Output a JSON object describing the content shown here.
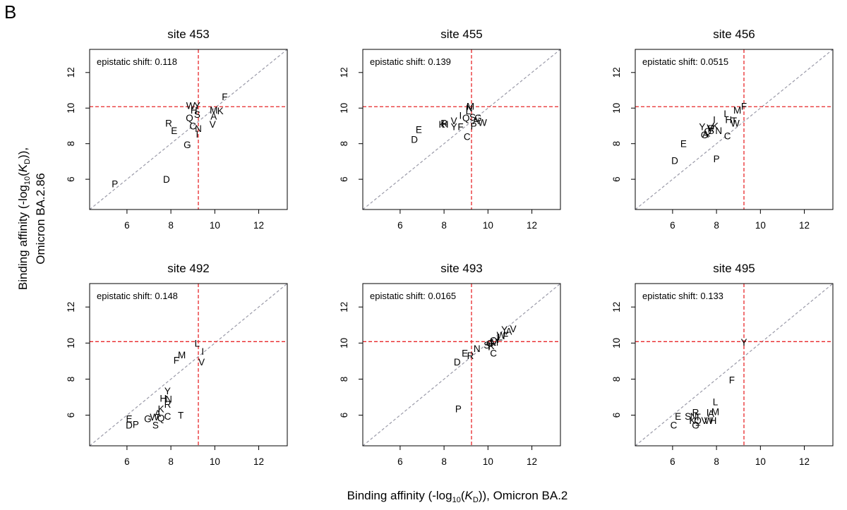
{
  "panel_letter": "B",
  "y_axis_title": {
    "line1_pre": "Binding affinity (-log",
    "line1_sub1": "10",
    "line1_mid": "(",
    "line1_italic": "K",
    "line1_sub2": "D",
    "line1_post": ")),",
    "line2": "Omicron BA.2.86"
  },
  "x_axis_title": {
    "pre": "Binding affinity (-log",
    "sub1": "10",
    "mid": "(",
    "italic": "K",
    "sub2": "D",
    "post": ")), Omicron BA.2"
  },
  "colors": {
    "reference_line": "#e8272a",
    "diagonal": "#9a9aa8",
    "frame": "#000000"
  },
  "chart_data": [
    {
      "type": "scatter",
      "title": "site 453",
      "annotation_label": "epistatic shift:",
      "annotation_value": "0.118",
      "xlim": [
        4.3,
        13.3
      ],
      "ylim": [
        4.3,
        13.3
      ],
      "xticks": [
        "6",
        "8",
        "10",
        "12"
      ],
      "yticks": [
        "6",
        "8",
        "10",
        "12"
      ],
      "ref_x": 9.25,
      "ref_y": 10.08,
      "points": [
        {
          "label": "W",
          "x": 8.9,
          "y": 10.15
        },
        {
          "label": "Y",
          "x": 9.2,
          "y": 10.15
        },
        {
          "label": "F",
          "x": 10.45,
          "y": 10.65
        },
        {
          "label": "H",
          "x": 9.05,
          "y": 9.9
        },
        {
          "label": "S",
          "x": 9.2,
          "y": 9.65
        },
        {
          "label": "M",
          "x": 9.95,
          "y": 9.9
        },
        {
          "label": "K",
          "x": 10.25,
          "y": 9.85
        },
        {
          "label": "A",
          "x": 9.95,
          "y": 9.55
        },
        {
          "label": "V",
          "x": 9.9,
          "y": 9.1
        },
        {
          "label": "Q",
          "x": 8.85,
          "y": 9.45
        },
        {
          "label": "R",
          "x": 7.9,
          "y": 9.15
        },
        {
          "label": "E",
          "x": 8.15,
          "y": 8.75
        },
        {
          "label": "C",
          "x": 9.0,
          "y": 9.0
        },
        {
          "label": "N",
          "x": 9.25,
          "y": 8.85
        },
        {
          "label": "I",
          "x": 9.2,
          "y": 8.55
        },
        {
          "label": "G",
          "x": 8.75,
          "y": 7.95
        },
        {
          "label": "D",
          "x": 7.8,
          "y": 6.0
        },
        {
          "label": "P",
          "x": 5.45,
          "y": 5.75
        }
      ]
    },
    {
      "type": "scatter",
      "title": "site 455",
      "annotation_label": "epistatic shift:",
      "annotation_value": "0.139",
      "xlim": [
        4.3,
        13.3
      ],
      "ylim": [
        4.3,
        13.3
      ],
      "xticks": [
        "6",
        "8",
        "10",
        "12"
      ],
      "yticks": [
        "6",
        "8",
        "10",
        "12"
      ],
      "ref_x": 9.25,
      "ref_y": 10.08,
      "points": [
        {
          "label": "N",
          "x": 9.15,
          "y": 10.0
        },
        {
          "label": "M",
          "x": 9.2,
          "y": 10.1
        },
        {
          "label": "L",
          "x": 9.1,
          "y": 9.85
        },
        {
          "label": "I",
          "x": 8.75,
          "y": 9.6
        },
        {
          "label": "V",
          "x": 8.45,
          "y": 9.3
        },
        {
          "label": "K",
          "x": 7.9,
          "y": 9.1
        },
        {
          "label": "H",
          "x": 8.05,
          "y": 9.1
        },
        {
          "label": "R",
          "x": 8.0,
          "y": 9.15
        },
        {
          "label": "Y",
          "x": 8.45,
          "y": 8.95
        },
        {
          "label": "F",
          "x": 8.75,
          "y": 8.95
        },
        {
          "label": "Q",
          "x": 9.0,
          "y": 9.45
        },
        {
          "label": "S",
          "x": 9.3,
          "y": 9.5
        },
        {
          "label": "G",
          "x": 9.55,
          "y": 9.45
        },
        {
          "label": "A",
          "x": 9.45,
          "y": 9.3
        },
        {
          "label": "W",
          "x": 9.75,
          "y": 9.2
        },
        {
          "label": "P",
          "x": 9.35,
          "y": 9.0
        },
        {
          "label": "C",
          "x": 9.05,
          "y": 8.4
        },
        {
          "label": "E",
          "x": 6.85,
          "y": 8.8
        },
        {
          "label": "D",
          "x": 6.65,
          "y": 8.25
        }
      ]
    },
    {
      "type": "scatter",
      "title": "site 456",
      "annotation_label": "epistatic shift:",
      "annotation_value": "0.0515",
      "xlim": [
        4.3,
        13.3
      ],
      "ylim": [
        4.3,
        13.3
      ],
      "xticks": [
        "6",
        "8",
        "10",
        "12"
      ],
      "yticks": [
        "6",
        "8",
        "10",
        "12"
      ],
      "ref_x": 9.25,
      "ref_y": 10.08,
      "points": [
        {
          "label": "F",
          "x": 9.25,
          "y": 10.1
        },
        {
          "label": "M",
          "x": 8.95,
          "y": 9.9
        },
        {
          "label": "L",
          "x": 8.45,
          "y": 9.7
        },
        {
          "label": "H",
          "x": 8.55,
          "y": 9.35
        },
        {
          "label": "T",
          "x": 8.8,
          "y": 9.3
        },
        {
          "label": "W",
          "x": 8.85,
          "y": 9.15
        },
        {
          "label": "I",
          "x": 7.9,
          "y": 9.35
        },
        {
          "label": "K",
          "x": 7.95,
          "y": 9.0
        },
        {
          "label": "Y",
          "x": 7.35,
          "y": 8.95
        },
        {
          "label": "R",
          "x": 7.75,
          "y": 8.85
        },
        {
          "label": "S",
          "x": 7.75,
          "y": 8.75
        },
        {
          "label": "Q",
          "x": 7.6,
          "y": 8.7
        },
        {
          "label": "A",
          "x": 7.5,
          "y": 8.55
        },
        {
          "label": "G",
          "x": 7.45,
          "y": 8.5
        },
        {
          "label": "N",
          "x": 8.1,
          "y": 8.75
        },
        {
          "label": "V",
          "x": 7.7,
          "y": 8.9
        },
        {
          "label": "C",
          "x": 8.5,
          "y": 8.45
        },
        {
          "label": "E",
          "x": 6.5,
          "y": 8.0
        },
        {
          "label": "D",
          "x": 6.1,
          "y": 7.05
        },
        {
          "label": "P",
          "x": 8.0,
          "y": 7.15
        }
      ]
    },
    {
      "type": "scatter",
      "title": "site 492",
      "annotation_label": "epistatic shift:",
      "annotation_value": "0.148",
      "xlim": [
        4.3,
        13.3
      ],
      "ylim": [
        4.3,
        13.3
      ],
      "xticks": [
        "6",
        "8",
        "10",
        "12"
      ],
      "yticks": [
        "6",
        "8",
        "10",
        "12"
      ],
      "ref_x": 9.25,
      "ref_y": 10.08,
      "points": [
        {
          "label": "L",
          "x": 9.2,
          "y": 10.0
        },
        {
          "label": "I",
          "x": 9.45,
          "y": 9.55
        },
        {
          "label": "V",
          "x": 9.4,
          "y": 8.95
        },
        {
          "label": "M",
          "x": 8.5,
          "y": 9.35
        },
        {
          "label": "F",
          "x": 8.25,
          "y": 9.05
        },
        {
          "label": "Y",
          "x": 7.85,
          "y": 7.35
        },
        {
          "label": "H",
          "x": 7.65,
          "y": 6.95
        },
        {
          "label": "N",
          "x": 7.9,
          "y": 6.9
        },
        {
          "label": "R",
          "x": 7.85,
          "y": 6.6
        },
        {
          "label": "K",
          "x": 7.55,
          "y": 6.35
        },
        {
          "label": "A",
          "x": 7.4,
          "y": 6.1
        },
        {
          "label": "T",
          "x": 8.45,
          "y": 6.0
        },
        {
          "label": "C",
          "x": 7.85,
          "y": 5.95
        },
        {
          "label": "Q",
          "x": 7.55,
          "y": 5.85
        },
        {
          "label": "W",
          "x": 7.25,
          "y": 5.9
        },
        {
          "label": "G",
          "x": 6.95,
          "y": 5.8
        },
        {
          "label": "S",
          "x": 7.3,
          "y": 5.45
        },
        {
          "label": "E",
          "x": 6.1,
          "y": 5.8
        },
        {
          "label": "D",
          "x": 6.1,
          "y": 5.45
        },
        {
          "label": "P",
          "x": 6.4,
          "y": 5.5
        }
      ]
    },
    {
      "type": "scatter",
      "title": "site 493",
      "annotation_label": "epistatic shift:",
      "annotation_value": "0.0165",
      "xlim": [
        4.3,
        13.3
      ],
      "ylim": [
        4.3,
        13.3
      ],
      "xticks": [
        "6",
        "8",
        "10",
        "12"
      ],
      "yticks": [
        "6",
        "8",
        "10",
        "12"
      ],
      "ref_x": 9.25,
      "ref_y": 10.08,
      "points": [
        {
          "label": "V",
          "x": 11.15,
          "y": 10.8
        },
        {
          "label": "A",
          "x": 10.95,
          "y": 10.65
        },
        {
          "label": "Y",
          "x": 10.75,
          "y": 10.75
        },
        {
          "label": "L",
          "x": 10.55,
          "y": 10.35
        },
        {
          "label": "F",
          "x": 10.8,
          "y": 10.4
        },
        {
          "label": "W",
          "x": 10.6,
          "y": 10.45
        },
        {
          "label": "I",
          "x": 10.45,
          "y": 10.2
        },
        {
          "label": "M",
          "x": 10.3,
          "y": 10.05
        },
        {
          "label": "G",
          "x": 10.1,
          "y": 10.0
        },
        {
          "label": "K",
          "x": 10.15,
          "y": 9.85
        },
        {
          "label": "S",
          "x": 9.95,
          "y": 9.9
        },
        {
          "label": "Q",
          "x": 10.25,
          "y": 10.15
        },
        {
          "label": "T",
          "x": 10.05,
          "y": 9.8
        },
        {
          "label": "C",
          "x": 10.25,
          "y": 9.45
        },
        {
          "label": "N",
          "x": 9.5,
          "y": 9.7
        },
        {
          "label": "E",
          "x": 8.95,
          "y": 9.45
        },
        {
          "label": "R",
          "x": 9.2,
          "y": 9.3
        },
        {
          "label": "D",
          "x": 8.6,
          "y": 8.95
        },
        {
          "label": "P",
          "x": 8.65,
          "y": 6.35
        }
      ]
    },
    {
      "type": "scatter",
      "title": "site 495",
      "annotation_label": "epistatic shift:",
      "annotation_value": "0.133",
      "xlim": [
        4.3,
        13.3
      ],
      "ylim": [
        4.3,
        13.3
      ],
      "xticks": [
        "6",
        "8",
        "10",
        "12"
      ],
      "yticks": [
        "6",
        "8",
        "10",
        "12"
      ],
      "ref_x": 9.25,
      "ref_y": 10.08,
      "points": [
        {
          "label": "Y",
          "x": 9.25,
          "y": 10.05
        },
        {
          "label": "F",
          "x": 8.7,
          "y": 7.95
        },
        {
          "label": "L",
          "x": 7.95,
          "y": 6.75
        },
        {
          "label": "M",
          "x": 7.95,
          "y": 6.2
        },
        {
          "label": "I",
          "x": 7.6,
          "y": 6.15
        },
        {
          "label": "A",
          "x": 7.75,
          "y": 6.1
        },
        {
          "label": "R",
          "x": 7.05,
          "y": 6.15
        },
        {
          "label": "E",
          "x": 6.25,
          "y": 5.95
        },
        {
          "label": "S",
          "x": 6.7,
          "y": 5.95
        },
        {
          "label": "N",
          "x": 6.95,
          "y": 5.95
        },
        {
          "label": "T",
          "x": 7.15,
          "y": 5.9
        },
        {
          "label": "K",
          "x": 6.9,
          "y": 5.7
        },
        {
          "label": "Q",
          "x": 7.15,
          "y": 5.7
        },
        {
          "label": "G",
          "x": 7.05,
          "y": 5.45
        },
        {
          "label": "V",
          "x": 7.45,
          "y": 5.7
        },
        {
          "label": "W",
          "x": 7.65,
          "y": 5.7
        },
        {
          "label": "H",
          "x": 7.85,
          "y": 5.7
        },
        {
          "label": "C",
          "x": 6.05,
          "y": 5.45
        }
      ]
    }
  ]
}
